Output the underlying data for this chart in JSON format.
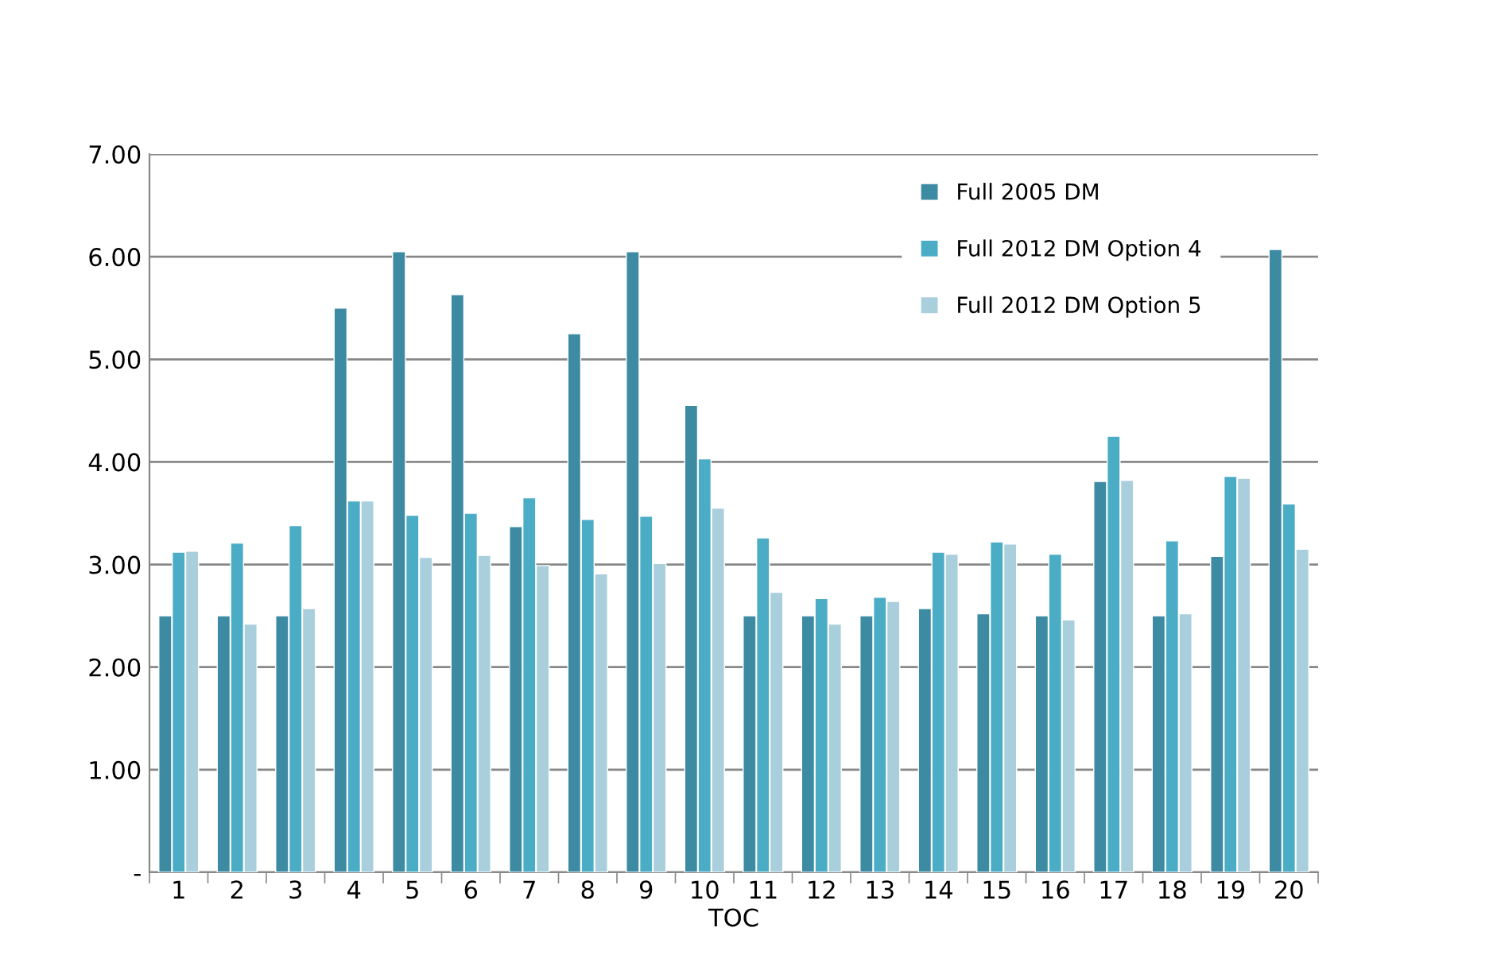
{
  "chart_data": {
    "type": "bar",
    "xlabel": "TOC",
    "categories": [
      "1",
      "2",
      "3",
      "4",
      "5",
      "6",
      "7",
      "8",
      "9",
      "10",
      "11",
      "12",
      "13",
      "14",
      "15",
      "16",
      "17",
      "18",
      "19",
      "20"
    ],
    "series": [
      {
        "name": "Full 2005 DM",
        "color": "#3d8ba3",
        "values": [
          2.5,
          2.5,
          2.5,
          5.5,
          6.05,
          5.63,
          3.37,
          5.25,
          6.05,
          4.55,
          2.5,
          2.5,
          2.5,
          2.57,
          2.52,
          2.5,
          3.81,
          2.5,
          3.08,
          6.07
        ]
      },
      {
        "name": "Full 2012 DM Option 4",
        "color": "#4bacc6",
        "values": [
          3.12,
          3.21,
          3.38,
          3.62,
          3.48,
          3.5,
          3.65,
          3.44,
          3.47,
          4.03,
          3.26,
          2.67,
          2.68,
          3.12,
          3.22,
          3.1,
          4.25,
          3.23,
          3.86,
          3.59
        ]
      },
      {
        "name": "Full 2012 DM Option 5",
        "color": "#a9cfdc",
        "values": [
          3.13,
          2.42,
          2.57,
          3.62,
          3.07,
          3.09,
          2.99,
          2.91,
          3.01,
          3.55,
          2.73,
          2.42,
          2.64,
          3.1,
          3.2,
          2.46,
          3.82,
          2.52,
          3.84,
          3.15
        ]
      }
    ],
    "ylim": [
      0,
      7
    ],
    "yticks": [
      {
        "value": 0,
        "label": "-"
      },
      {
        "value": 1,
        "label": "1.00"
      },
      {
        "value": 2,
        "label": "2.00"
      },
      {
        "value": 3,
        "label": "3.00"
      },
      {
        "value": 4,
        "label": "4.00"
      },
      {
        "value": 5,
        "label": "5.00"
      },
      {
        "value": 6,
        "label": "6.00"
      },
      {
        "value": 7,
        "label": "7.00"
      }
    ],
    "grid": "y",
    "legend": "top right"
  }
}
